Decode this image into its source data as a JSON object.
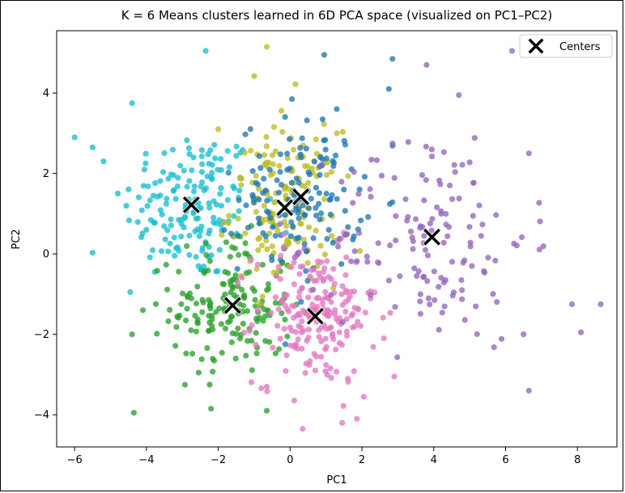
{
  "chart_data": {
    "type": "scatter",
    "title": "K = 6 Means clusters learned in 6D PCA space (visualized on PC1–PC2)",
    "xlabel": "PC1",
    "ylabel": "PC2",
    "xlim": [
      -6.5,
      9.1
    ],
    "ylim": [
      -4.8,
      5.55
    ],
    "xticks": [
      -6,
      -4,
      -2,
      0,
      2,
      4,
      6,
      8
    ],
    "yticks": [
      -4,
      -2,
      0,
      2,
      4
    ],
    "grid": false,
    "legend": {
      "position": "top-right",
      "entries": [
        {
          "label": "Centers",
          "marker": "X",
          "color": "#000000"
        }
      ]
    },
    "clusters": [
      {
        "color": "#17becf",
        "center": [
          -2.75,
          1.22
        ],
        "spread": [
          0.95,
          0.95
        ],
        "n": 170,
        "extra_points": [
          [
            -6.0,
            2.9
          ],
          [
            -5.5,
            2.65
          ],
          [
            -5.5,
            0.03
          ],
          [
            -4.45,
            -0.95
          ],
          [
            -2.35,
            5.05
          ],
          [
            -4.4,
            3.75
          ]
        ]
      },
      {
        "color": "#2ca02c",
        "center": [
          -1.6,
          -1.28
        ],
        "spread": [
          0.85,
          0.85
        ],
        "n": 175,
        "extra_points": [
          [
            -4.35,
            -3.95
          ],
          [
            -4.4,
            -2.0
          ],
          [
            -4.1,
            -1.4
          ],
          [
            -2.2,
            -3.85
          ],
          [
            -0.65,
            -3.9
          ]
        ]
      },
      {
        "color": "#bcbd22",
        "center": [
          -0.15,
          1.15
        ],
        "spread": [
          0.75,
          0.95
        ],
        "n": 155,
        "extra_points": [
          [
            -0.65,
            5.15
          ],
          [
            -1.0,
            4.42
          ],
          [
            0.15,
            4.22
          ],
          [
            -2.0,
            3.1
          ]
        ]
      },
      {
        "color": "#1f77b4",
        "center": [
          0.3,
          1.42
        ],
        "spread": [
          0.85,
          0.95
        ],
        "n": 145,
        "extra_points": [
          [
            0.95,
            4.95
          ],
          [
            2.75,
            4.1
          ],
          [
            2.85,
            4.85
          ],
          [
            1.3,
            3.6
          ],
          [
            0.05,
            3.85
          ]
        ]
      },
      {
        "color": "#e377c2",
        "center": [
          0.7,
          -1.55
        ],
        "spread": [
          0.85,
          0.85
        ],
        "n": 205,
        "extra_points": [
          [
            0.35,
            -4.35
          ],
          [
            1.45,
            -4.2
          ],
          [
            2.9,
            -3.05
          ],
          [
            2.05,
            -3.55
          ],
          [
            -0.65,
            -3.3
          ]
        ]
      },
      {
        "color": "#9467bd",
        "center": [
          3.95,
          0.42
        ],
        "spread": [
          1.35,
          1.35
        ],
        "n": 140,
        "extra_points": [
          [
            8.65,
            -1.25
          ],
          [
            8.1,
            -1.95
          ],
          [
            7.85,
            -1.25
          ],
          [
            6.65,
            -3.4
          ],
          [
            6.5,
            -2.0
          ],
          [
            6.65,
            2.5
          ],
          [
            3.8,
            4.7
          ],
          [
            4.7,
            3.95
          ]
        ]
      }
    ],
    "centers": [
      {
        "x": -2.75,
        "y": 1.22
      },
      {
        "x": -1.6,
        "y": -1.28
      },
      {
        "x": -0.15,
        "y": 1.15
      },
      {
        "x": 0.3,
        "y": 1.42
      },
      {
        "x": 0.7,
        "y": -1.55
      },
      {
        "x": 3.95,
        "y": 0.42
      }
    ]
  }
}
